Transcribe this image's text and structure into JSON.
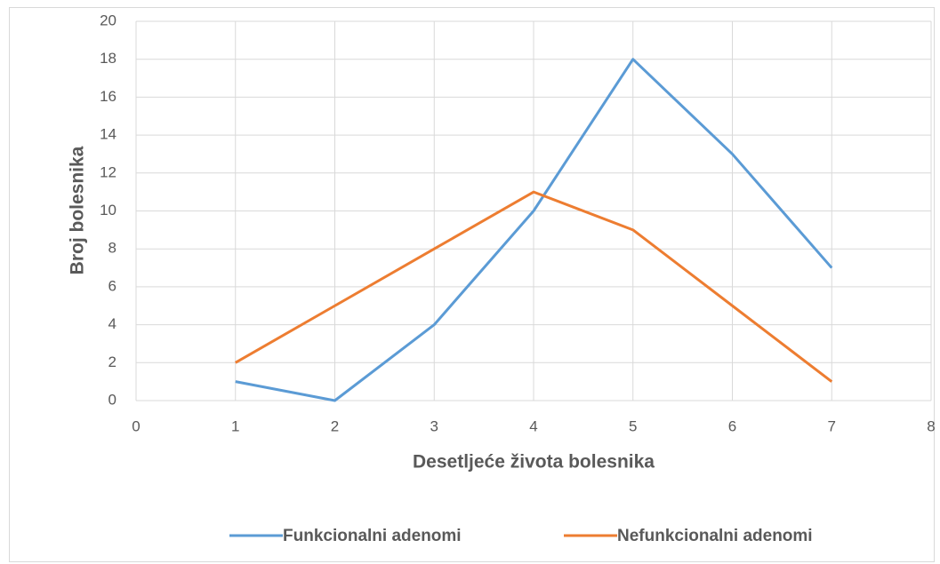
{
  "chart_data": {
    "type": "line",
    "x_label": "Desetljeće života bolesnika",
    "y_label": "Broj bolesnika",
    "x": [
      1,
      2,
      3,
      4,
      5,
      6,
      7
    ],
    "series": [
      {
        "name": "Funkcionalni adenomi",
        "color": "#5b9bd5",
        "values": [
          1,
          0,
          4,
          10,
          18,
          13,
          7
        ]
      },
      {
        "name": "Nefunkcionalni adenomi",
        "color": "#ed7d31",
        "values": [
          2,
          5,
          8,
          11,
          9,
          5,
          1
        ]
      }
    ],
    "xlim": [
      0,
      8
    ],
    "xticks": [
      0,
      1,
      2,
      3,
      4,
      5,
      6,
      7,
      8
    ],
    "ylim": [
      0,
      20
    ],
    "yticks": [
      0,
      2,
      4,
      6,
      8,
      10,
      12,
      14,
      16,
      18,
      20
    ],
    "grid": true,
    "legend": "bottom"
  }
}
